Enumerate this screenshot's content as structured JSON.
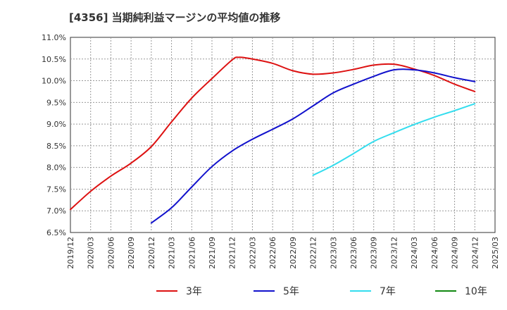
{
  "title": "[4356]  当期純利益マージンの平均値の推移",
  "chart_data": {
    "type": "line",
    "title": "[4356]  当期純利益マージンの平均値の推移",
    "xlabel": "",
    "ylabel": "",
    "ylim": [
      6.5,
      11.0
    ],
    "y_ticks": [
      "11.0%",
      "10.5%",
      "10.0%",
      "9.5%",
      "9.0%",
      "8.5%",
      "8.0%",
      "7.5%",
      "7.0%",
      "6.5%"
    ],
    "x_ticks": [
      "2019/12",
      "2020/03",
      "2020/06",
      "2020/09",
      "2020/12",
      "2021/03",
      "2021/06",
      "2021/09",
      "2021/12",
      "2022/03",
      "2022/06",
      "2022/09",
      "2022/12",
      "2023/03",
      "2023/06",
      "2023/09",
      "2023/12",
      "2024/03",
      "2024/06",
      "2024/09",
      "2024/12",
      "2025/03"
    ],
    "grid": true,
    "legend_position": "bottom",
    "series": [
      {
        "name": "3年",
        "color": "#dd1111",
        "points": [
          [
            "2019/12",
            7.03
          ],
          [
            "2020/03",
            7.45
          ],
          [
            "2020/06",
            7.8
          ],
          [
            "2020/09",
            8.1
          ],
          [
            "2020/12",
            8.48
          ],
          [
            "2021/03",
            9.05
          ],
          [
            "2021/06",
            9.6
          ],
          [
            "2021/09",
            10.05
          ],
          [
            "2021/12",
            10.48
          ],
          [
            "2022/01",
            10.54
          ],
          [
            "2022/03",
            10.5
          ],
          [
            "2022/06",
            10.4
          ],
          [
            "2022/09",
            10.23
          ],
          [
            "2022/12",
            10.15
          ],
          [
            "2023/03",
            10.18
          ],
          [
            "2023/06",
            10.26
          ],
          [
            "2023/09",
            10.36
          ],
          [
            "2023/12",
            10.38
          ],
          [
            "2024/03",
            10.27
          ],
          [
            "2024/06",
            10.12
          ],
          [
            "2024/09",
            9.92
          ],
          [
            "2024/12",
            9.75
          ]
        ]
      },
      {
        "name": "5年",
        "color": "#1111cc",
        "points": [
          [
            "2020/12",
            6.72
          ],
          [
            "2021/03",
            7.07
          ],
          [
            "2021/06",
            7.55
          ],
          [
            "2021/09",
            8.02
          ],
          [
            "2021/12",
            8.38
          ],
          [
            "2022/03",
            8.65
          ],
          [
            "2022/06",
            8.88
          ],
          [
            "2022/09",
            9.12
          ],
          [
            "2022/12",
            9.42
          ],
          [
            "2023/03",
            9.72
          ],
          [
            "2023/06",
            9.92
          ],
          [
            "2023/09",
            10.1
          ],
          [
            "2023/12",
            10.25
          ],
          [
            "2024/03",
            10.25
          ],
          [
            "2024/06",
            10.18
          ],
          [
            "2024/09",
            10.07
          ],
          [
            "2024/12",
            9.98
          ]
        ]
      },
      {
        "name": "7年",
        "color": "#33ddee",
        "points": [
          [
            "2022/12",
            7.82
          ],
          [
            "2023/03",
            8.05
          ],
          [
            "2023/06",
            8.32
          ],
          [
            "2023/09",
            8.6
          ],
          [
            "2023/12",
            8.8
          ],
          [
            "2024/03",
            8.99
          ],
          [
            "2024/06",
            9.16
          ],
          [
            "2024/09",
            9.31
          ],
          [
            "2024/12",
            9.47
          ]
        ]
      },
      {
        "name": "10年",
        "color": "#118811",
        "points": []
      }
    ]
  }
}
